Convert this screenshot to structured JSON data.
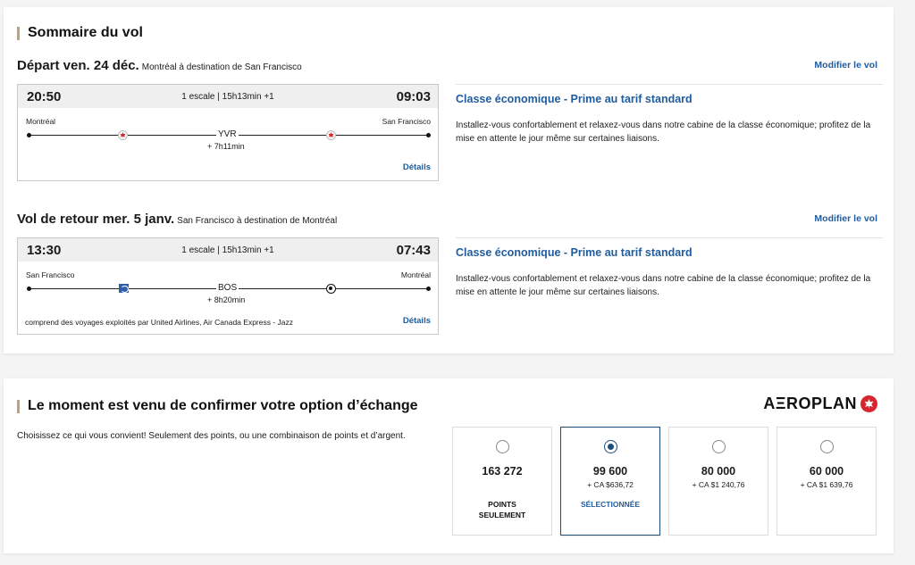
{
  "summary": {
    "title": "Sommaire du vol",
    "outbound": {
      "heading": "Départ ven. 24 déc.",
      "route": "Montréal à destination de San Francisco",
      "modify": "Modifier le vol",
      "dep_time": "20:50",
      "arr_time": "09:03",
      "stops": "1 escale | 15h13min +1",
      "origin": "Montréal",
      "destination": "San Francisco",
      "stop_code": "YVR",
      "stop_duration": "+ 7h11min",
      "details": "Détails",
      "fare_title": "Classe économique - Prime au tarif standard",
      "fare_desc": "Installez-vous confortablement et relaxez-vous dans notre cabine de la classe économique; profitez de la mise en attente le jour même sur certaines liaisons."
    },
    "inbound": {
      "heading": "Vol de retour mer. 5 janv.",
      "route": "San Francisco à destination de Montréal",
      "modify": "Modifier le vol",
      "dep_time": "13:30",
      "arr_time": "07:43",
      "stops": "1 escale | 15h13min +1",
      "origin": "San Francisco",
      "destination": "Montréal",
      "stop_code": "BOS",
      "stop_duration": "+ 8h20min",
      "operated_by": "comprend des voyages exploités par United Airlines, Air Canada Express - Jazz",
      "details": "Détails",
      "fare_title": "Classe économique - Prime au tarif standard",
      "fare_desc": "Installez-vous confortablement et relaxez-vous dans notre cabine de la classe économique; profitez de la mise en attente le jour même sur certaines liaisons."
    }
  },
  "redeem": {
    "title": "Le moment est venu de confirmer votre option d’échange",
    "brand": "AΞROPLAN",
    "intro": "Choisissez ce qui vous convient! Seulement des points, ou une combinaison de points et d’argent.",
    "options": [
      {
        "points": "163 272",
        "cash": "",
        "note": "POINTS SEULEMENT",
        "selected": false
      },
      {
        "points": "99 600",
        "cash": "+ CA $636,72",
        "note": "SÉLECTIONNÉE",
        "selected": true
      },
      {
        "points": "80 000",
        "cash": "+ CA $1 240,76",
        "note": "",
        "selected": false
      },
      {
        "points": "60 000",
        "cash": "+ CA $1 639,76",
        "note": "",
        "selected": false
      }
    ]
  },
  "colors": {
    "accent_gold": "#b9a47c",
    "link_blue": "#1f5c9e",
    "selected_navy": "#1f4d7a",
    "air_canada_red": "#d8262f"
  },
  "icons": {
    "outbound_airlines": [
      "air-canada-icon",
      "air-canada-icon"
    ],
    "inbound_airlines": [
      "united-airlines-icon",
      "jazz-icon"
    ],
    "brand": "maple-leaf-icon"
  }
}
